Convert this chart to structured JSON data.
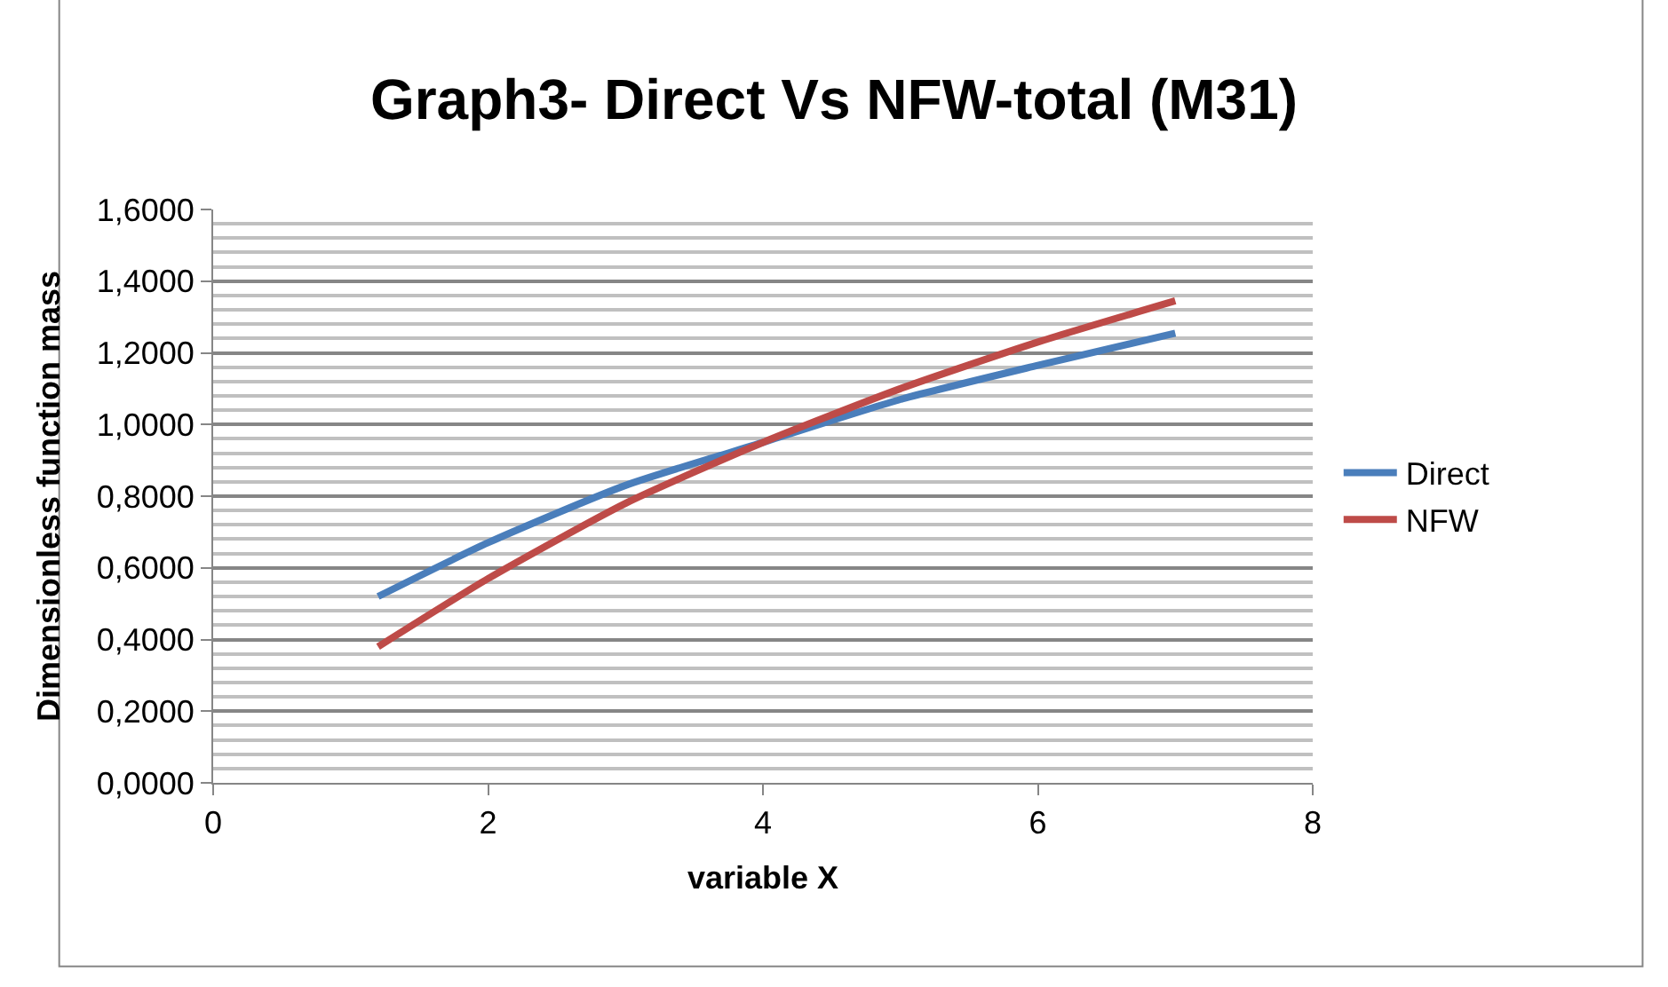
{
  "chart_data": {
    "type": "line",
    "title": "Graph3- Direct Vs NFW-total (M31)",
    "xlabel": "variable X",
    "ylabel": "Dimensionless function mass",
    "x": [
      1.2,
      2,
      3,
      4,
      5,
      6,
      7
    ],
    "series": [
      {
        "name": "Direct",
        "color": "#4a7ebb",
        "values": [
          0.52,
          0.67,
          0.83,
          0.95,
          1.07,
          1.165,
          1.255
        ]
      },
      {
        "name": "NFW",
        "color": "#be4b48",
        "values": [
          0.38,
          0.57,
          0.78,
          0.95,
          1.1,
          1.23,
          1.345
        ]
      }
    ],
    "xlim": [
      0,
      8
    ],
    "xticks": [
      0,
      2,
      4,
      6,
      8
    ],
    "ylim": [
      0,
      1.6
    ],
    "yticks": [
      {
        "value": 0,
        "label": "0,0000"
      },
      {
        "value": 0.2,
        "label": "0,2000"
      },
      {
        "value": 0.4,
        "label": "0,4000"
      },
      {
        "value": 0.6,
        "label": "0,6000"
      },
      {
        "value": 0.8,
        "label": "0,8000"
      },
      {
        "value": 1.0,
        "label": "1,0000"
      },
      {
        "value": 1.2,
        "label": "1,2000"
      },
      {
        "value": 1.4,
        "label": "1,4000"
      },
      {
        "value": 1.6,
        "label": "1,6000"
      }
    ],
    "grid": "y",
    "legend": "right",
    "marker": "none",
    "line_style": "solid"
  }
}
